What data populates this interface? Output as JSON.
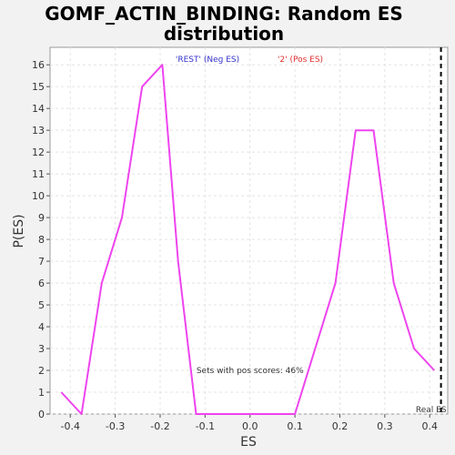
{
  "chart_data": {
    "type": "line",
    "title_line1": "GOMF_ACTIN_BINDING: Random ES",
    "title_line2": "distribution",
    "xlabel": "ES",
    "ylabel": "P(ES)",
    "xlim": [
      -0.445,
      0.44
    ],
    "ylim": [
      0,
      16.8
    ],
    "x_ticks": [
      -0.4,
      -0.3,
      -0.2,
      -0.1,
      0.0,
      0.1,
      0.2,
      0.3,
      0.4
    ],
    "x_tick_labels": [
      "-0.4",
      "-0.3",
      "-0.2",
      "-0.1",
      "0.0",
      "0.1",
      "0.2",
      "0.3",
      "0.4"
    ],
    "y_ticks": [
      0,
      1,
      2,
      3,
      4,
      5,
      6,
      7,
      8,
      9,
      10,
      11,
      12,
      13,
      14,
      15,
      16
    ],
    "y_tick_labels": [
      "0",
      "1",
      "2",
      "3",
      "4",
      "5",
      "6",
      "7",
      "8",
      "9",
      "10",
      "11",
      "12",
      "13",
      "14",
      "15",
      "16"
    ],
    "grid": true,
    "legend": [
      {
        "label": "'REST' (Neg ES)",
        "color": "#3333cc"
      },
      {
        "label": "'2' (Pos ES)",
        "color": "#e03030"
      }
    ],
    "series": [
      {
        "color": "#ee44ee",
        "x": [
          -0.42,
          -0.375,
          -0.33,
          -0.285,
          -0.24,
          -0.195,
          -0.16,
          -0.12,
          0.1,
          0.19,
          0.235,
          0.275,
          0.32,
          0.365,
          0.41
        ],
        "y": [
          1,
          0,
          6,
          9,
          15,
          16,
          7,
          0,
          0,
          6,
          13,
          13,
          6,
          3,
          2
        ]
      }
    ],
    "real_es": {
      "x": 0.425,
      "label": "Real ES"
    },
    "annotation": {
      "text": "Sets with pos scores: 46%",
      "x": 0.0,
      "y": 2.0
    }
  }
}
